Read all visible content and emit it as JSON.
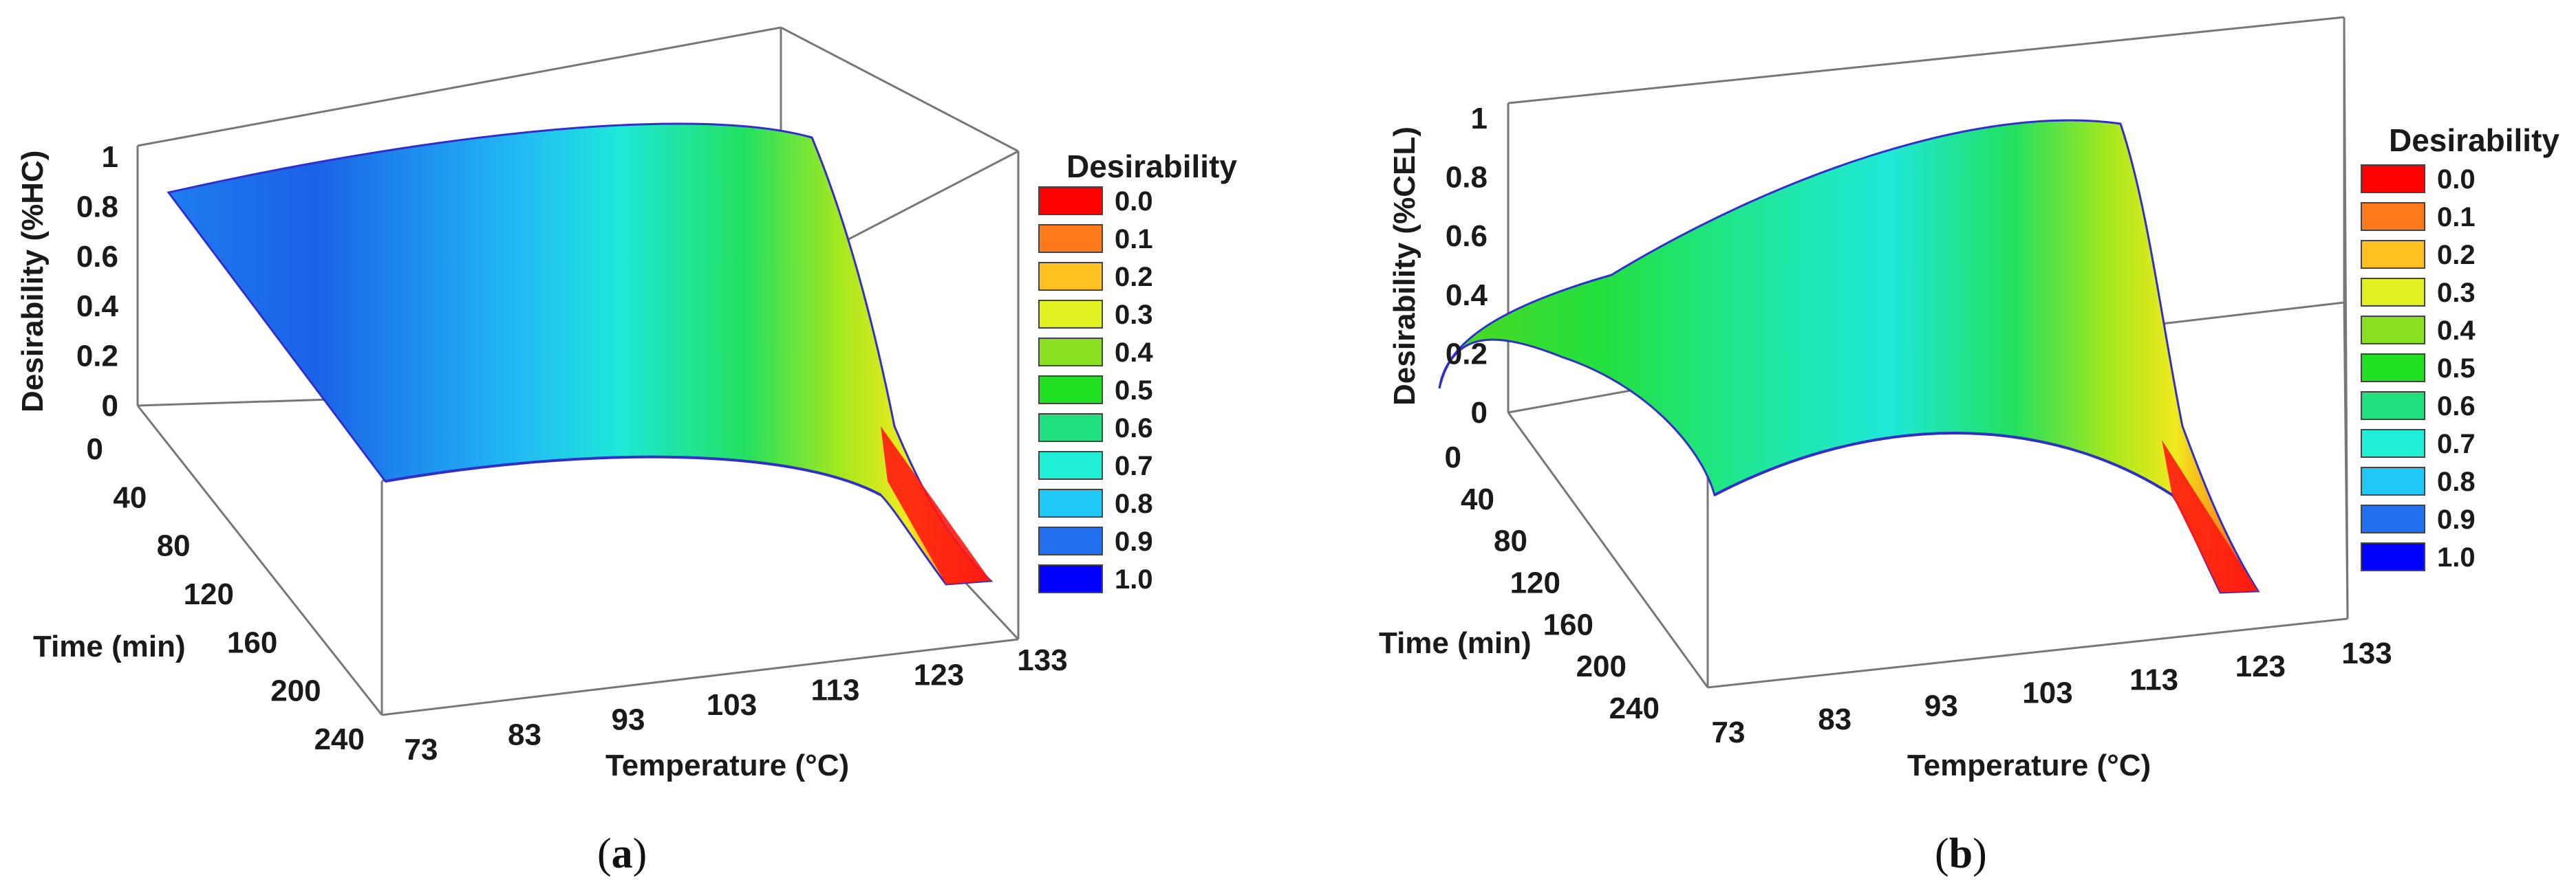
{
  "chart_data": [
    {
      "type": "surface3d",
      "panel_label": "(a)",
      "panel_letter": "a",
      "zlabel": "Desirability (%HC)",
      "xlabel": "Temperature (°C)",
      "ylabel": "Time (min)",
      "x_ticks": [
        "73",
        "83",
        "93",
        "103",
        "113",
        "123",
        "133"
      ],
      "y_ticks": [
        "0",
        "40",
        "80",
        "120",
        "160",
        "200",
        "240"
      ],
      "z_ticks": [
        "0",
        "0.2",
        "0.4",
        "0.6",
        "0.8",
        "1"
      ],
      "xlim": [
        73,
        133
      ],
      "ylim": [
        0,
        240
      ],
      "zlim": [
        0,
        1
      ],
      "surface_values": {
        "temperature": [
          73,
          83,
          93,
          103,
          113,
          118,
          123,
          128,
          133
        ],
        "time_0": [
          0.83,
          0.88,
          0.9,
          0.9,
          0.88,
          0.8,
          0.45,
          0.05,
          0.0
        ],
        "time_240": [
          0.88,
          0.86,
          0.82,
          0.74,
          0.6,
          0.48,
          0.3,
          0.05,
          0.0
        ]
      },
      "legend": {
        "title": "Desirability",
        "entries": [
          "0.0",
          "0.1",
          "0.2",
          "0.3",
          "0.4",
          "0.5",
          "0.6",
          "0.7",
          "0.8",
          "0.9",
          "1.0"
        ],
        "colors": [
          "#ff0000",
          "#ff7a1a",
          "#ffc020",
          "#e0f020",
          "#88e020",
          "#22e022",
          "#22e080",
          "#20f0d8",
          "#20c8f8",
          "#2070f0",
          "#0000ff"
        ]
      }
    },
    {
      "type": "surface3d",
      "panel_label": "(b)",
      "panel_letter": "b",
      "zlabel": "Desirability (%CEL)",
      "xlabel": "Temperature (°C)",
      "ylabel": "Time (min)",
      "x_ticks": [
        "73",
        "83",
        "93",
        "103",
        "113",
        "123",
        "133"
      ],
      "y_ticks": [
        "0",
        "40",
        "80",
        "120",
        "160",
        "200",
        "240"
      ],
      "z_ticks": [
        "0",
        "0.2",
        "0.4",
        "0.6",
        "0.8",
        "1"
      ],
      "xlim": [
        73,
        133
      ],
      "ylim": [
        0,
        240
      ],
      "zlim": [
        0,
        1
      ],
      "surface_values": {
        "temperature": [
          73,
          83,
          93,
          103,
          113,
          118,
          123,
          128,
          133
        ],
        "time_0": [
          0.1,
          0.45,
          0.62,
          0.72,
          0.78,
          0.75,
          0.45,
          0.05,
          0.0
        ],
        "time_240": [
          0.55,
          0.62,
          0.66,
          0.66,
          0.6,
          0.48,
          0.28,
          0.05,
          0.0
        ]
      },
      "legend": {
        "title": "Desirability",
        "entries": [
          "0.0",
          "0.1",
          "0.2",
          "0.3",
          "0.4",
          "0.5",
          "0.6",
          "0.7",
          "0.8",
          "0.9",
          "1.0"
        ],
        "colors": [
          "#ff0000",
          "#ff7a1a",
          "#ffc020",
          "#e0f020",
          "#88e020",
          "#22e022",
          "#22e080",
          "#20f0d8",
          "#20c8f8",
          "#2070f0",
          "#0000ff"
        ]
      }
    }
  ]
}
